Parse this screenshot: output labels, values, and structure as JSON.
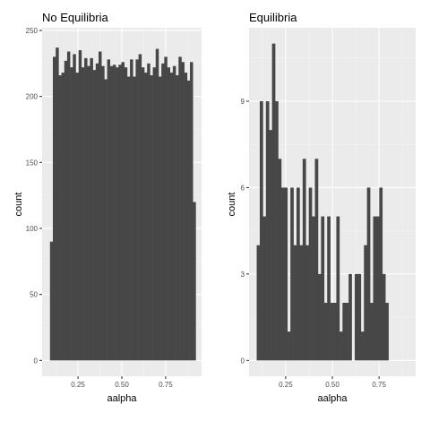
{
  "chart_data": [
    {
      "type": "bar",
      "title": "No Equilibria",
      "xlabel": "aalpha",
      "ylabel": "count",
      "xlim": [
        0.045,
        0.955
      ],
      "ylim": [
        -12,
        252
      ],
      "xticks": [
        0.25,
        0.5,
        0.75
      ],
      "xtick_labels": [
        "0.25",
        "0.50",
        "0.75"
      ],
      "yticks": [
        0,
        50,
        100,
        150,
        200,
        250
      ],
      "ytick_labels": [
        "0",
        "50",
        "100",
        "150",
        "200",
        "250"
      ],
      "bin_start": 0.09,
      "bin_width": 0.0163,
      "values": [
        90,
        230,
        237,
        216,
        218,
        227,
        234,
        222,
        232,
        218,
        235,
        222,
        229,
        223,
        229,
        220,
        225,
        234,
        223,
        213,
        228,
        223,
        224,
        222,
        224,
        226,
        222,
        215,
        228,
        215,
        228,
        232,
        222,
        218,
        225,
        216,
        222,
        236,
        215,
        225,
        230,
        222,
        218,
        223,
        216,
        230,
        226,
        218,
        212,
        226,
        120
      ],
      "grid": true,
      "legend": "none"
    },
    {
      "type": "bar",
      "title": "Equilibria",
      "xlabel": "aalpha",
      "ylabel": "count",
      "xlim": [
        0.054,
        0.946
      ],
      "ylim": [
        -0.55,
        11.55
      ],
      "xticks": [
        0.25,
        0.5,
        0.75
      ],
      "xtick_labels": [
        "0.25",
        "0.50",
        "0.75"
      ],
      "yticks": [
        0,
        3,
        6,
        9
      ],
      "ytick_labels": [
        "0",
        "3",
        "6",
        "9"
      ],
      "bin_start": 0.095,
      "bin_width": 0.0164,
      "values": [
        4,
        9,
        5,
        9,
        8,
        11,
        9,
        7,
        6,
        6,
        1,
        6,
        4,
        6,
        4,
        7,
        4,
        6,
        5,
        7,
        3,
        5,
        2,
        5,
        2,
        2,
        5,
        1,
        2,
        2,
        3,
        0,
        3,
        3,
        1,
        4,
        6,
        2,
        5,
        5,
        6,
        3,
        2
      ],
      "grid": true,
      "legend": "none"
    }
  ]
}
